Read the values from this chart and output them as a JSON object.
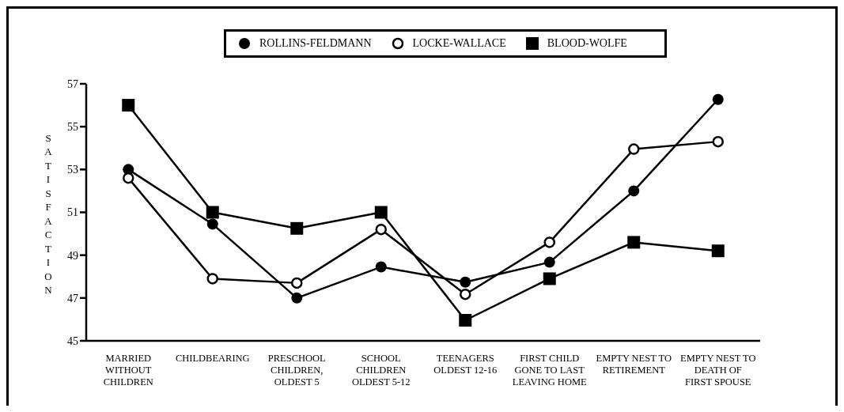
{
  "chart_data": {
    "type": "line",
    "ylabel": "SATISFACTION",
    "categories": [
      "MARRIED\nWITHOUT\nCHILDREN",
      "CHILDBEARING",
      "PRESCHOOL\nCHILDREN,\nOLDEST 5",
      "SCHOOL\nCHILDREN\nOLDEST 5-12",
      "TEENAGERS\nOLDEST 12-16",
      "FIRST CHILD\nGONE TO LAST\nLEAVING HOME",
      "EMPTY NEST TO\nRETIREMENT",
      "EMPTY NEST TO\nDEATH OF\nFIRST SPOUSE"
    ],
    "series": [
      {
        "name": "ROLLINS-FELDMANN",
        "color": "#000000",
        "marker": "circle",
        "values": [
          53.0,
          50.45,
          47.0,
          48.45,
          47.74,
          48.67,
          52.0,
          56.27
        ]
      },
      {
        "name": "LOCKE-WALLACE",
        "color": "#000000",
        "marker": "circle",
        "values": [
          52.6,
          47.9,
          47.7,
          50.2,
          47.17,
          49.6,
          53.95,
          54.3
        ]
      },
      {
        "name": "BLOOD-WOLFE",
        "color": "#000000",
        "marker": "square",
        "values": [
          56.0,
          51.0,
          50.25,
          51.0,
          45.96,
          47.9,
          49.6,
          49.2
        ]
      }
    ],
    "ylim": [
      45,
      57
    ],
    "yticks": [
      45,
      47,
      49,
      51,
      53,
      55,
      57
    ],
    "grid": false,
    "legend": "top",
    "line_style": "solid"
  }
}
